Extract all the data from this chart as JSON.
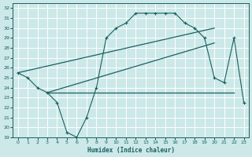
{
  "xlabel": "Humidex (Indice chaleur)",
  "bg_color": "#cce8e8",
  "line_color": "#1a6060",
  "grid_color": "#aacccc",
  "xlim": [
    -0.5,
    23.5
  ],
  "ylim": [
    19,
    32.5
  ],
  "yticks": [
    19,
    20,
    21,
    22,
    23,
    24,
    25,
    26,
    27,
    28,
    29,
    30,
    31,
    32
  ],
  "xticks": [
    0,
    1,
    2,
    3,
    4,
    5,
    6,
    7,
    8,
    9,
    10,
    11,
    12,
    13,
    14,
    15,
    16,
    17,
    18,
    19,
    20,
    21,
    22,
    23
  ],
  "main_line_x": [
    0,
    1,
    2,
    3,
    4,
    5,
    6,
    7,
    8,
    9,
    10,
    11,
    12,
    13,
    14,
    15,
    16,
    17,
    18,
    19,
    20,
    21,
    22,
    23
  ],
  "main_line_y": [
    25.5,
    25.0,
    24.0,
    23.5,
    22.5,
    19.5,
    19.0,
    21.0,
    24.0,
    29.0,
    30.0,
    30.5,
    31.5,
    31.5,
    31.5,
    31.5,
    31.5,
    30.5,
    30.0,
    29.0,
    25.0,
    24.5,
    29.0,
    22.5
  ],
  "upper_line": [
    [
      0,
      25.5
    ],
    [
      20,
      30.0
    ]
  ],
  "lower_line": [
    [
      3,
      23.5
    ],
    [
      20,
      28.5
    ]
  ],
  "horiz_line_x": [
    3,
    22
  ],
  "horiz_line_y": 23.5
}
